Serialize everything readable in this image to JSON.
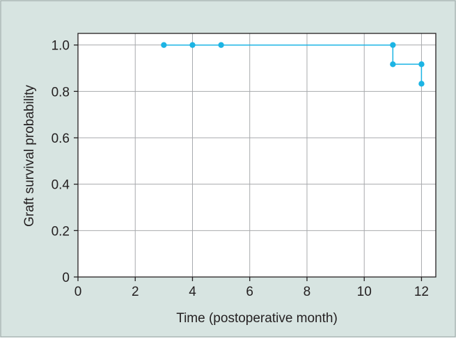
{
  "chart_data": {
    "type": "line",
    "step": true,
    "title": "",
    "xlabel": "Time (postoperative month)",
    "ylabel": "Graft survival probability",
    "xlim": [
      0,
      12.5
    ],
    "ylim": [
      0,
      1.05
    ],
    "xticks": [
      0,
      2,
      4,
      6,
      8,
      10,
      12
    ],
    "yticks": [
      0,
      0.2,
      0.4,
      0.6,
      0.8,
      1.0
    ],
    "ytick_labels": [
      "0",
      "0.2",
      "0.4",
      "0.6",
      "0.8",
      "1.0"
    ],
    "grid": true,
    "series": [
      {
        "step_path": [
          [
            3,
            1.0
          ],
          [
            11,
            1.0
          ],
          [
            11,
            0.917
          ],
          [
            12,
            0.917
          ],
          [
            12,
            0.833
          ]
        ],
        "points": [
          [
            3,
            1.0
          ],
          [
            4,
            1.0
          ],
          [
            5,
            1.0
          ],
          [
            11,
            1.0
          ],
          [
            11,
            0.917
          ],
          [
            12,
            0.917
          ],
          [
            12,
            0.833
          ]
        ]
      }
    ]
  },
  "colors": {
    "background": "#d7e4e1",
    "plot_area": "#ffffff",
    "grid": "#a7a9ac",
    "series": "#1cb4e4",
    "axis": "#231f20"
  }
}
